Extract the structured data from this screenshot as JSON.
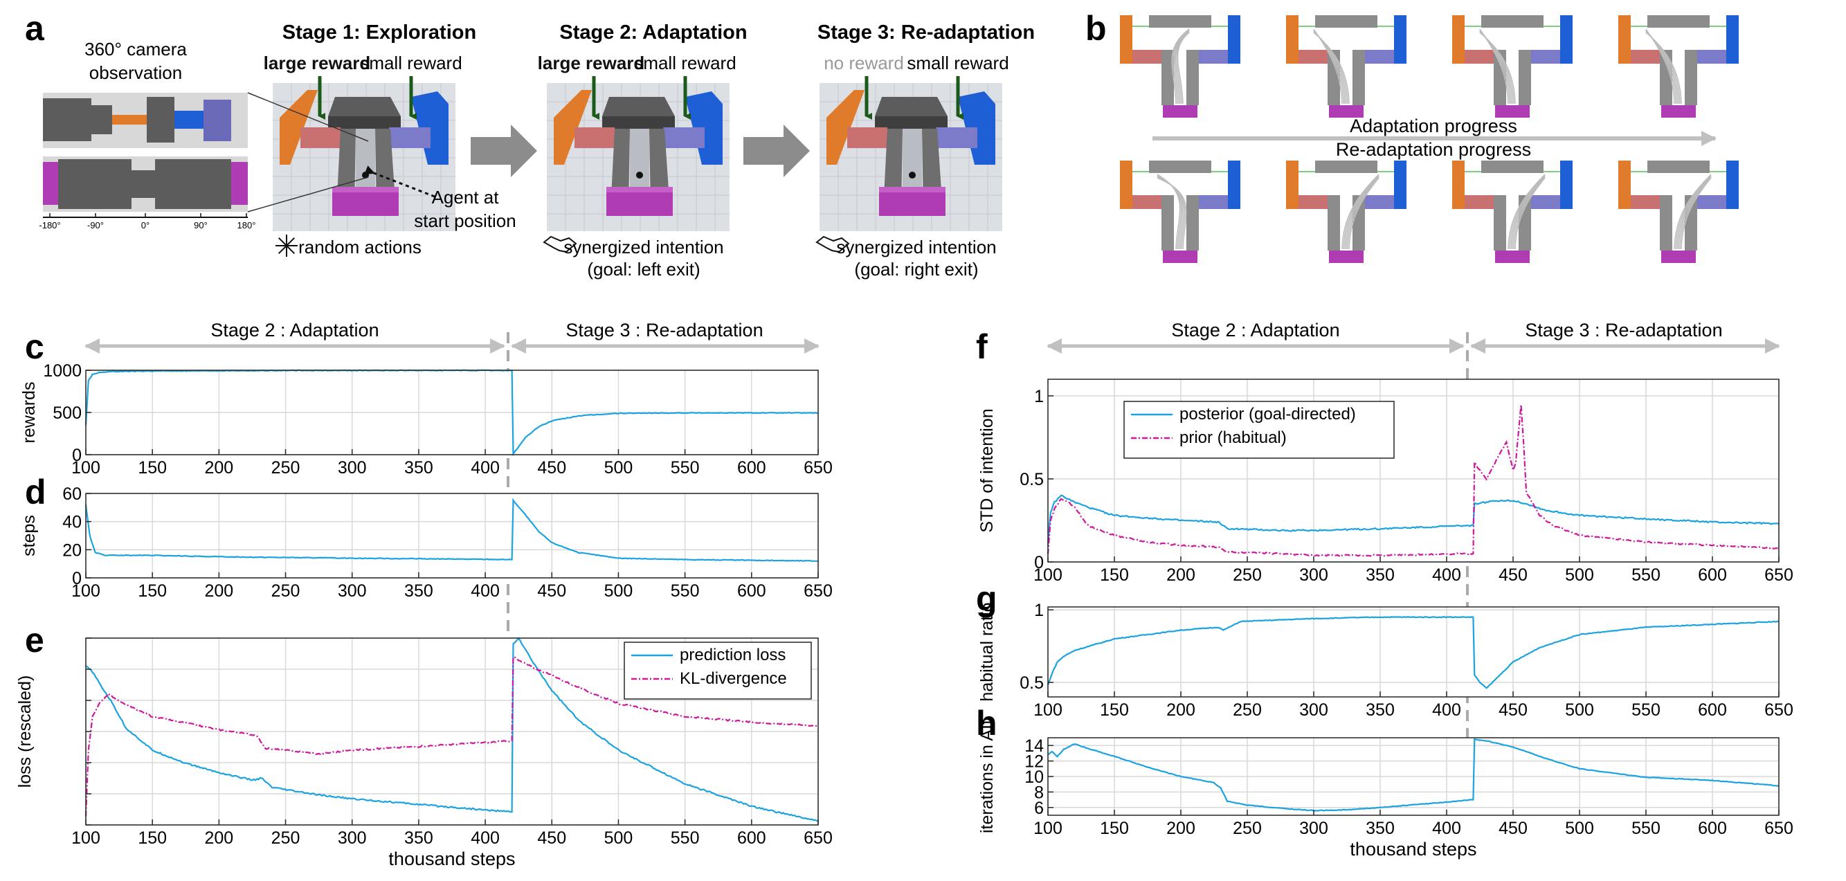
{
  "panel_letters": [
    "a",
    "b",
    "c",
    "d",
    "e",
    "f",
    "g",
    "h"
  ],
  "panel_a": {
    "camera_title_line1": "360° camera",
    "camera_title_line2": "observation",
    "angle_ticks": [
      "-180°",
      "-90°",
      "0°",
      "90°",
      "180°"
    ],
    "stages": [
      {
        "title": "Stage 1: Exploration",
        "left_label": "large reward",
        "right_label": "small reward",
        "caption1": "random actions",
        "caption2": ""
      },
      {
        "title": "Stage 2: Adaptation",
        "left_label": "large reward",
        "right_label": "small reward",
        "caption1": "synergized intention",
        "caption2": "(goal: left exit)"
      },
      {
        "title": "Stage 3: Re-adaptation",
        "left_label": "no reward",
        "right_label": "small reward",
        "caption1": "synergized intention",
        "caption2": "(goal: right exit)"
      }
    ],
    "agent_label_line1": "Agent at",
    "agent_label_line2": "start position"
  },
  "panel_b": {
    "progress_label_top": "Adaptation progress",
    "progress_label_bottom": "Re-adaptation progress"
  },
  "stage_labels": {
    "stage2": "Stage 2 : Adaptation",
    "stage3": "Stage 3 : Re-adaptation"
  },
  "colors": {
    "posterior": "#1aa3e0",
    "prior": "#d0169a",
    "grid": "#d9d9d9",
    "dashed_divider": "#aaaaaa",
    "orange": "#e07b2b",
    "blue": "#1f5fd6",
    "purple": "#b03cb3",
    "wall": "#8c8c8c",
    "arrow_green": "#1c5a1c"
  },
  "chart_data": [
    {
      "id": "c",
      "type": "line",
      "ylabel": "rewards",
      "xlabel": "",
      "xlim": [
        100,
        650
      ],
      "ylim": [
        0,
        1000
      ],
      "xticks": [
        100,
        150,
        200,
        250,
        300,
        350,
        400,
        450,
        500,
        550,
        600,
        650
      ],
      "yticks": [
        0,
        500,
        1000
      ],
      "grid": true,
      "series": [
        {
          "color": "#1aa3e0",
          "points": [
            [
              100,
              350
            ],
            [
              102,
              880
            ],
            [
              105,
              950
            ],
            [
              110,
              975
            ],
            [
              120,
              985
            ],
            [
              150,
              990
            ],
            [
              200,
              995
            ],
            [
              300,
              998
            ],
            [
              420,
              998
            ],
            [
              421,
              10
            ],
            [
              430,
              200
            ],
            [
              440,
              330
            ],
            [
              450,
              400
            ],
            [
              470,
              460
            ],
            [
              500,
              490
            ],
            [
              550,
              495
            ],
            [
              650,
              495
            ]
          ]
        }
      ]
    },
    {
      "id": "d",
      "type": "line",
      "ylabel": "steps",
      "xlabel": "",
      "xlim": [
        100,
        650
      ],
      "ylim": [
        0,
        60
      ],
      "xticks": [
        100,
        150,
        200,
        250,
        300,
        350,
        400,
        450,
        500,
        550,
        600,
        650
      ],
      "yticks": [
        0,
        20,
        40,
        60
      ],
      "grid": true,
      "series": [
        {
          "color": "#1aa3e0",
          "points": [
            [
              100,
              52
            ],
            [
              103,
              30
            ],
            [
              107,
              18
            ],
            [
              115,
              16
            ],
            [
              150,
              16
            ],
            [
              200,
              15
            ],
            [
              300,
              14
            ],
            [
              420,
              13
            ],
            [
              421,
              55
            ],
            [
              430,
              45
            ],
            [
              440,
              33
            ],
            [
              450,
              25
            ],
            [
              470,
              18
            ],
            [
              500,
              14
            ],
            [
              550,
              13
            ],
            [
              650,
              12
            ]
          ]
        }
      ]
    },
    {
      "id": "e",
      "type": "line",
      "ylabel": "loss (rescaled)",
      "xlabel": "thousand steps",
      "xlim": [
        100,
        650
      ],
      "ylim": [
        0,
        1
      ],
      "xticks": [
        100,
        150,
        200,
        250,
        300,
        350,
        400,
        450,
        500,
        550,
        600,
        650
      ],
      "ytick_count": 7,
      "grid": true,
      "legend": {
        "placement": "top-right",
        "entries": [
          {
            "label": "prediction loss",
            "color": "#1aa3e0",
            "dash": false
          },
          {
            "label": "KL-divergence",
            "color": "#d0169a",
            "dash": true
          }
        ]
      },
      "series": [
        {
          "name": "prediction loss",
          "color": "#1aa3e0",
          "dash": false,
          "points": [
            [
              100,
              0.85
            ],
            [
              105,
              0.82
            ],
            [
              110,
              0.76
            ],
            [
              120,
              0.65
            ],
            [
              130,
              0.52
            ],
            [
              150,
              0.4
            ],
            [
              175,
              0.33
            ],
            [
              200,
              0.28
            ],
            [
              225,
              0.24
            ],
            [
              232,
              0.25
            ],
            [
              240,
              0.2
            ],
            [
              275,
              0.16
            ],
            [
              300,
              0.14
            ],
            [
              350,
              0.11
            ],
            [
              400,
              0.08
            ],
            [
              420,
              0.07
            ],
            [
              421,
              0.97
            ],
            [
              425,
              1.0
            ],
            [
              435,
              0.88
            ],
            [
              450,
              0.72
            ],
            [
              470,
              0.56
            ],
            [
              500,
              0.4
            ],
            [
              550,
              0.22
            ],
            [
              600,
              0.1
            ],
            [
              650,
              0.02
            ]
          ]
        },
        {
          "name": "KL-divergence",
          "color": "#d0169a",
          "dash": true,
          "points": [
            [
              100,
              0.05
            ],
            [
              102,
              0.4
            ],
            [
              105,
              0.58
            ],
            [
              110,
              0.65
            ],
            [
              117,
              0.7
            ],
            [
              125,
              0.66
            ],
            [
              150,
              0.58
            ],
            [
              200,
              0.51
            ],
            [
              228,
              0.48
            ],
            [
              235,
              0.41
            ],
            [
              250,
              0.4
            ],
            [
              275,
              0.38
            ],
            [
              300,
              0.4
            ],
            [
              350,
              0.42
            ],
            [
              420,
              0.45
            ],
            [
              421,
              0.9
            ],
            [
              425,
              0.88
            ],
            [
              440,
              0.83
            ],
            [
              450,
              0.8
            ],
            [
              475,
              0.72
            ],
            [
              500,
              0.65
            ],
            [
              550,
              0.58
            ],
            [
              600,
              0.55
            ],
            [
              650,
              0.53
            ]
          ]
        }
      ]
    },
    {
      "id": "f",
      "type": "line",
      "ylabel": "STD of intention",
      "xlabel": "",
      "xlim": [
        100,
        650
      ],
      "ylim": [
        0,
        1.1
      ],
      "xticks": [
        100,
        150,
        200,
        250,
        300,
        350,
        400,
        450,
        500,
        550,
        600,
        650
      ],
      "yticks": [
        0,
        0.5,
        1
      ],
      "grid": true,
      "legend": {
        "placement": "top-left",
        "entries": [
          {
            "label": "posterior (goal-directed)",
            "color": "#1aa3e0",
            "dash": false
          },
          {
            "label": "prior (habitual)",
            "color": "#d0169a",
            "dash": true
          }
        ]
      },
      "series": [
        {
          "name": "posterior (goal-directed)",
          "color": "#1aa3e0",
          "dash": false,
          "points": [
            [
              100,
              0.1
            ],
            [
              102,
              0.3
            ],
            [
              105,
              0.36
            ],
            [
              110,
              0.4
            ],
            [
              115,
              0.38
            ],
            [
              120,
              0.36
            ],
            [
              130,
              0.33
            ],
            [
              150,
              0.28
            ],
            [
              200,
              0.25
            ],
            [
              228,
              0.24
            ],
            [
              235,
              0.2
            ],
            [
              275,
              0.19
            ],
            [
              300,
              0.19
            ],
            [
              350,
              0.2
            ],
            [
              420,
              0.22
            ],
            [
              421,
              0.35
            ],
            [
              430,
              0.36
            ],
            [
              440,
              0.37
            ],
            [
              450,
              0.37
            ],
            [
              460,
              0.35
            ],
            [
              475,
              0.31
            ],
            [
              500,
              0.28
            ],
            [
              550,
              0.26
            ],
            [
              600,
              0.24
            ],
            [
              650,
              0.23
            ]
          ]
        },
        {
          "name": "prior (habitual)",
          "color": "#d0169a",
          "dash": true,
          "points": [
            [
              100,
              0.05
            ],
            [
              102,
              0.25
            ],
            [
              105,
              0.32
            ],
            [
              110,
              0.38
            ],
            [
              115,
              0.36
            ],
            [
              120,
              0.33
            ],
            [
              130,
              0.22
            ],
            [
              150,
              0.16
            ],
            [
              175,
              0.12
            ],
            [
              200,
              0.1
            ],
            [
              228,
              0.09
            ],
            [
              235,
              0.06
            ],
            [
              275,
              0.05
            ],
            [
              300,
              0.04
            ],
            [
              350,
              0.04
            ],
            [
              420,
              0.05
            ],
            [
              421,
              0.6
            ],
            [
              425,
              0.55
            ],
            [
              430,
              0.5
            ],
            [
              440,
              0.65
            ],
            [
              445,
              0.72
            ],
            [
              450,
              0.55
            ],
            [
              452,
              0.6
            ],
            [
              456,
              0.95
            ],
            [
              458,
              0.7
            ],
            [
              460,
              0.42
            ],
            [
              470,
              0.28
            ],
            [
              480,
              0.22
            ],
            [
              500,
              0.16
            ],
            [
              550,
              0.12
            ],
            [
              600,
              0.1
            ],
            [
              650,
              0.08
            ]
          ]
        }
      ]
    },
    {
      "id": "g",
      "type": "line",
      "ylabel": "habitual ratio",
      "xlabel": "",
      "xlim": [
        100,
        650
      ],
      "ylim": [
        0.4,
        1.02
      ],
      "xticks": [
        100,
        150,
        200,
        250,
        300,
        350,
        400,
        450,
        500,
        550,
        600,
        650
      ],
      "yticks": [
        0.5,
        1
      ],
      "grid": true,
      "series": [
        {
          "color": "#1aa3e0",
          "points": [
            [
              100,
              0.48
            ],
            [
              103,
              0.56
            ],
            [
              107,
              0.64
            ],
            [
              112,
              0.68
            ],
            [
              120,
              0.72
            ],
            [
              150,
              0.8
            ],
            [
              200,
              0.86
            ],
            [
              228,
              0.88
            ],
            [
              232,
              0.86
            ],
            [
              245,
              0.92
            ],
            [
              300,
              0.94
            ],
            [
              350,
              0.95
            ],
            [
              420,
              0.95
            ],
            [
              421,
              0.55
            ],
            [
              425,
              0.5
            ],
            [
              430,
              0.46
            ],
            [
              440,
              0.55
            ],
            [
              450,
              0.64
            ],
            [
              470,
              0.74
            ],
            [
              500,
              0.83
            ],
            [
              550,
              0.88
            ],
            [
              600,
              0.9
            ],
            [
              650,
              0.92
            ]
          ]
        }
      ]
    },
    {
      "id": "h",
      "type": "line",
      "ylabel": "iterations in AIf",
      "xlabel": "thousand steps",
      "xlim": [
        100,
        650
      ],
      "ylim": [
        5,
        15
      ],
      "xticks": [
        100,
        150,
        200,
        250,
        300,
        350,
        400,
        450,
        500,
        550,
        600,
        650
      ],
      "yticks": [
        6,
        8,
        10,
        12,
        14
      ],
      "grid": true,
      "series": [
        {
          "color": "#1aa3e0",
          "points": [
            [
              100,
              12.8
            ],
            [
              103,
              13.2
            ],
            [
              107,
              12.6
            ],
            [
              112,
              13.5
            ],
            [
              120,
              14.2
            ],
            [
              130,
              13.6
            ],
            [
              150,
              12.6
            ],
            [
              175,
              11.2
            ],
            [
              200,
              10.0
            ],
            [
              225,
              9.2
            ],
            [
              230,
              8.5
            ],
            [
              235,
              6.8
            ],
            [
              250,
              6.3
            ],
            [
              275,
              5.9
            ],
            [
              300,
              5.6
            ],
            [
              325,
              5.7
            ],
            [
              350,
              6.0
            ],
            [
              400,
              6.7
            ],
            [
              420,
              7.0
            ],
            [
              421,
              14.8
            ],
            [
              430,
              14.6
            ],
            [
              450,
              13.8
            ],
            [
              475,
              12.3
            ],
            [
              500,
              11.0
            ],
            [
              550,
              9.9
            ],
            [
              600,
              9.5
            ],
            [
              650,
              8.8
            ]
          ]
        }
      ]
    }
  ]
}
